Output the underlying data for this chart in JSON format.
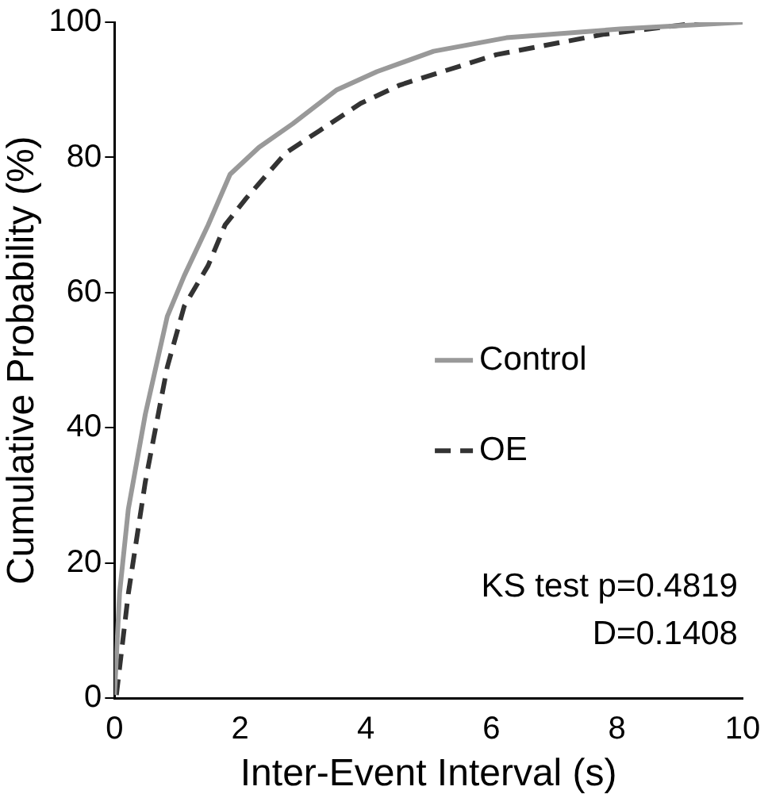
{
  "chart_data": {
    "type": "line",
    "xlabel": "Inter-Event Interval (s)",
    "ylabel": "Cumulative Probability (%)",
    "xlim": [
      0,
      10
    ],
    "xticks": [
      0,
      2,
      4,
      6,
      8,
      10
    ],
    "ylim": [
      0,
      100
    ],
    "yticks": [
      0,
      20,
      40,
      60,
      80,
      100
    ],
    "grid": false,
    "legend": "right",
    "marker": "none",
    "series": [
      {
        "name": "Control",
        "color": "#999999",
        "line_style": "solid",
        "x": [
          0,
          0.08,
          0.22,
          0.49,
          0.84,
          1.11,
          1.49,
          1.84,
          2.3,
          2.84,
          3.54,
          4.18,
          5.08,
          6.24,
          8.05,
          10
        ],
        "values": [
          0.5,
          15.5,
          28,
          42,
          56.5,
          62.5,
          70,
          77.5,
          81.5,
          85,
          90,
          92.7,
          95.7,
          97.7,
          99,
          100
        ]
      },
      {
        "name": "OE",
        "color": "#333333",
        "line_style": "dashed",
        "x": [
          0.03,
          0.22,
          0.49,
          0.84,
          1.11,
          1.49,
          1.76,
          2.1,
          2.73,
          3.27,
          3.92,
          4.54,
          4.81,
          6.08,
          7.78,
          9.4,
          10
        ],
        "values": [
          0.5,
          15.5,
          32,
          49,
          58,
          64,
          70,
          74,
          80.7,
          84,
          88,
          90.7,
          91.5,
          95.2,
          98.2,
          100,
          100
        ]
      }
    ],
    "annotations": [
      "KS test p=0.4819",
      "D=0.1408"
    ]
  }
}
